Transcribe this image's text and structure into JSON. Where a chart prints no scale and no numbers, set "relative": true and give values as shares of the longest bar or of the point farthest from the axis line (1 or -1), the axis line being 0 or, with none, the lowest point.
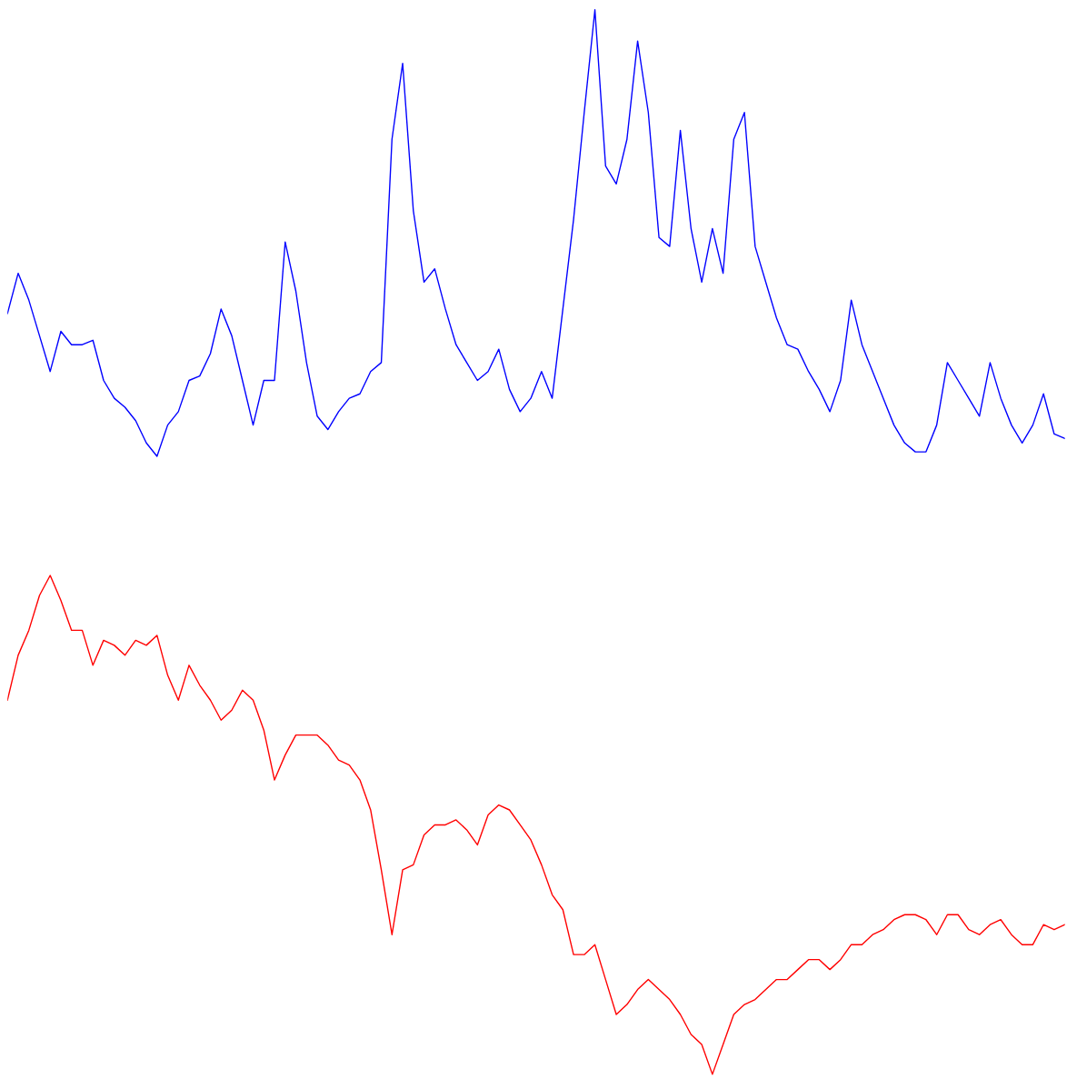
{
  "chart_data": [
    {
      "type": "line",
      "relative": true,
      "categories": [
        null,
        null,
        null,
        null,
        null,
        null,
        null,
        null,
        null,
        null,
        null,
        null,
        null,
        null,
        null,
        null,
        null,
        null,
        null,
        null,
        null,
        null,
        null,
        null,
        null,
        null,
        null,
        null,
        null,
        null,
        null,
        null,
        null,
        null,
        null,
        null,
        null,
        null,
        null,
        null,
        null,
        null,
        null,
        null,
        null,
        null,
        null,
        null,
        null,
        null,
        null,
        null,
        null,
        null,
        null,
        null,
        null,
        null,
        null,
        null,
        null,
        null,
        null,
        null,
        null,
        null,
        null,
        null,
        null,
        null,
        null,
        null,
        null,
        null,
        null,
        null,
        null,
        null,
        null,
        null,
        null,
        null,
        null,
        null,
        null,
        null,
        null,
        null,
        null,
        null,
        null,
        null,
        null,
        null,
        null,
        null,
        null,
        null,
        null,
        null
      ],
      "series": [
        {
          "color": "#0000ff",
          "values": [
            0.32,
            0.41,
            0.35,
            0.27,
            0.19,
            0.28,
            0.25,
            0.25,
            0.26,
            0.17,
            0.13,
            0.11,
            0.08,
            0.03,
            0,
            0.07,
            0.1,
            0.17,
            0.18,
            0.23,
            0.33,
            0.27,
            0.17,
            0.07,
            0.17,
            0.17,
            0.48,
            0.37,
            0.21,
            0.09,
            0.06,
            0.1,
            0.13,
            0.14,
            0.19,
            0.21,
            0.71,
            0.88,
            0.55,
            0.39,
            0.42,
            0.33,
            0.25,
            0.21,
            0.17,
            0.19,
            0.24,
            0.15,
            0.1,
            0.13,
            0.19,
            0.13,
            0.33,
            0.53,
            0.77,
            1,
            0.65,
            0.61,
            0.71,
            0.93,
            0.77,
            0.49,
            0.47,
            0.73,
            0.51,
            0.39,
            0.51,
            0.41,
            0.71,
            0.77,
            0.47,
            0.39,
            0.31,
            0.25,
            0.24,
            0.19,
            0.15,
            0.1,
            0.17,
            0.35,
            0.25,
            0.19,
            0.13,
            0.07,
            0.03,
            0.01,
            0.01,
            0.07,
            0.21,
            0.17,
            0.13,
            0.09,
            0.21,
            0.13,
            0.07,
            0.03,
            0.07,
            0.14,
            0.05,
            0.04
          ]
        }
      ]
    },
    {
      "type": "line",
      "relative": true,
      "categories": [
        null,
        null,
        null,
        null,
        null,
        null,
        null,
        null,
        null,
        null,
        null,
        null,
        null,
        null,
        null,
        null,
        null,
        null,
        null,
        null,
        null,
        null,
        null,
        null,
        null,
        null,
        null,
        null,
        null,
        null,
        null,
        null,
        null,
        null,
        null,
        null,
        null,
        null,
        null,
        null,
        null,
        null,
        null,
        null,
        null,
        null,
        null,
        null,
        null,
        null,
        null,
        null,
        null,
        null,
        null,
        null,
        null,
        null,
        null,
        null,
        null,
        null,
        null,
        null,
        null,
        null,
        null,
        null,
        null,
        null,
        null,
        null,
        null,
        null,
        null,
        null,
        null,
        null,
        null,
        null,
        null,
        null,
        null,
        null,
        null,
        null,
        null,
        null,
        null,
        null,
        null,
        null,
        null,
        null,
        null,
        null,
        null,
        null,
        null,
        null
      ],
      "series": [
        {
          "color": "#ff0000",
          "values": [
            0.75,
            0.84,
            0.89,
            0.96,
            1,
            0.95,
            0.89,
            0.89,
            0.82,
            0.87,
            0.86,
            0.84,
            0.87,
            0.86,
            0.88,
            0.8,
            0.75,
            0.82,
            0.78,
            0.75,
            0.71,
            0.73,
            0.77,
            0.75,
            0.69,
            0.59,
            0.64,
            0.68,
            0.68,
            0.68,
            0.66,
            0.63,
            0.62,
            0.59,
            0.53,
            0.41,
            0.28,
            0.41,
            0.42,
            0.48,
            0.5,
            0.5,
            0.51,
            0.49,
            0.46,
            0.52,
            0.54,
            0.53,
            0.5,
            0.47,
            0.42,
            0.36,
            0.33,
            0.24,
            0.24,
            0.26,
            0.19,
            0.12,
            0.14,
            0.17,
            0.19,
            0.17,
            0.15,
            0.12,
            0.08,
            0.06,
            0,
            0.06,
            0.12,
            0.14,
            0.15,
            0.17,
            0.19,
            0.19,
            0.21,
            0.23,
            0.23,
            0.21,
            0.23,
            0.26,
            0.26,
            0.28,
            0.29,
            0.31,
            0.32,
            0.32,
            0.31,
            0.28,
            0.32,
            0.32,
            0.29,
            0.28,
            0.3,
            0.31,
            0.28,
            0.26,
            0.26,
            0.3,
            0.29,
            0.3
          ]
        }
      ]
    }
  ]
}
